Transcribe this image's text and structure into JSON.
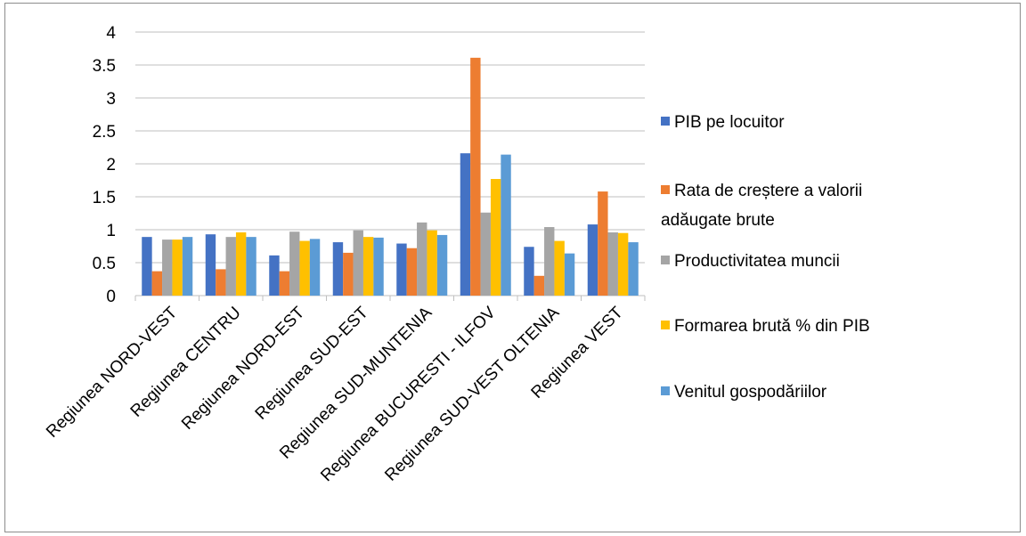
{
  "chart_data": {
    "type": "bar",
    "title": "",
    "xlabel": "",
    "ylabel": "",
    "ylim": [
      0,
      4
    ],
    "yticks": [
      "0",
      "0.5",
      "1",
      "1.5",
      "2",
      "2.5",
      "3",
      "3.5",
      "4"
    ],
    "grid": true,
    "legend_position": "right",
    "categories": [
      "Regiunea NORD-VEST",
      "Regiunea CENTRU",
      "Regiunea NORD-EST",
      "Regiunea SUD-EST",
      "Regiunea SUD-MUNTENIA",
      "Regiunea BUCURESTI - ILFOV",
      "Regiunea SUD-VEST OLTENIA",
      "Regiunea VEST"
    ],
    "series": [
      {
        "name": "PIB pe locuitor",
        "color": "#4472c4",
        "values": [
          0.89,
          0.93,
          0.61,
          0.81,
          0.79,
          2.16,
          0.74,
          1.08
        ]
      },
      {
        "name": "Rata de creștere a valorii adăugate brute",
        "color": "#ed7d31",
        "values": [
          0.37,
          0.4,
          0.37,
          0.65,
          0.72,
          3.61,
          0.3,
          1.58
        ]
      },
      {
        "name": "Productivitatea muncii",
        "color": "#a5a5a5",
        "values": [
          0.85,
          0.89,
          0.97,
          0.99,
          1.11,
          1.26,
          1.04,
          0.96
        ]
      },
      {
        "name": "Formarea brută % din PIB",
        "color": "#ffc000",
        "values": [
          0.85,
          0.96,
          0.83,
          0.89,
          0.99,
          1.77,
          0.83,
          0.95
        ]
      },
      {
        "name": "Venitul gospodăriilor",
        "color": "#5b9bd5",
        "values": [
          0.89,
          0.89,
          0.86,
          0.88,
          0.92,
          2.14,
          0.64,
          0.81
        ]
      }
    ]
  }
}
